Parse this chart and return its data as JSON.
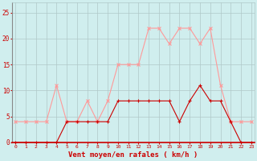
{
  "hours": [
    0,
    1,
    2,
    3,
    4,
    5,
    6,
    7,
    8,
    9,
    10,
    11,
    12,
    13,
    14,
    15,
    16,
    17,
    18,
    19,
    20,
    21,
    22,
    23
  ],
  "wind_avg": [
    0,
    0,
    0,
    0,
    0,
    4,
    4,
    4,
    4,
    4,
    8,
    8,
    8,
    8,
    8,
    8,
    4,
    8,
    11,
    8,
    8,
    4,
    0,
    0
  ],
  "wind_gust": [
    4,
    4,
    4,
    4,
    11,
    4,
    4,
    8,
    4,
    8,
    15,
    15,
    15,
    22,
    22,
    19,
    22,
    22,
    19,
    22,
    11,
    4,
    4,
    4
  ],
  "avg_color": "#cc0000",
  "gust_color": "#ff9999",
  "bg_color": "#d0eeee",
  "grid_color": "#b0c8c8",
  "xlabel": "Vent moyen/en rafales ( km/h )",
  "xlabel_color": "#cc0000",
  "tick_color": "#cc0000",
  "ylim": [
    0,
    27
  ],
  "yticks": [
    0,
    5,
    10,
    15,
    20,
    25
  ],
  "figsize": [
    3.2,
    2.0
  ],
  "dpi": 100
}
